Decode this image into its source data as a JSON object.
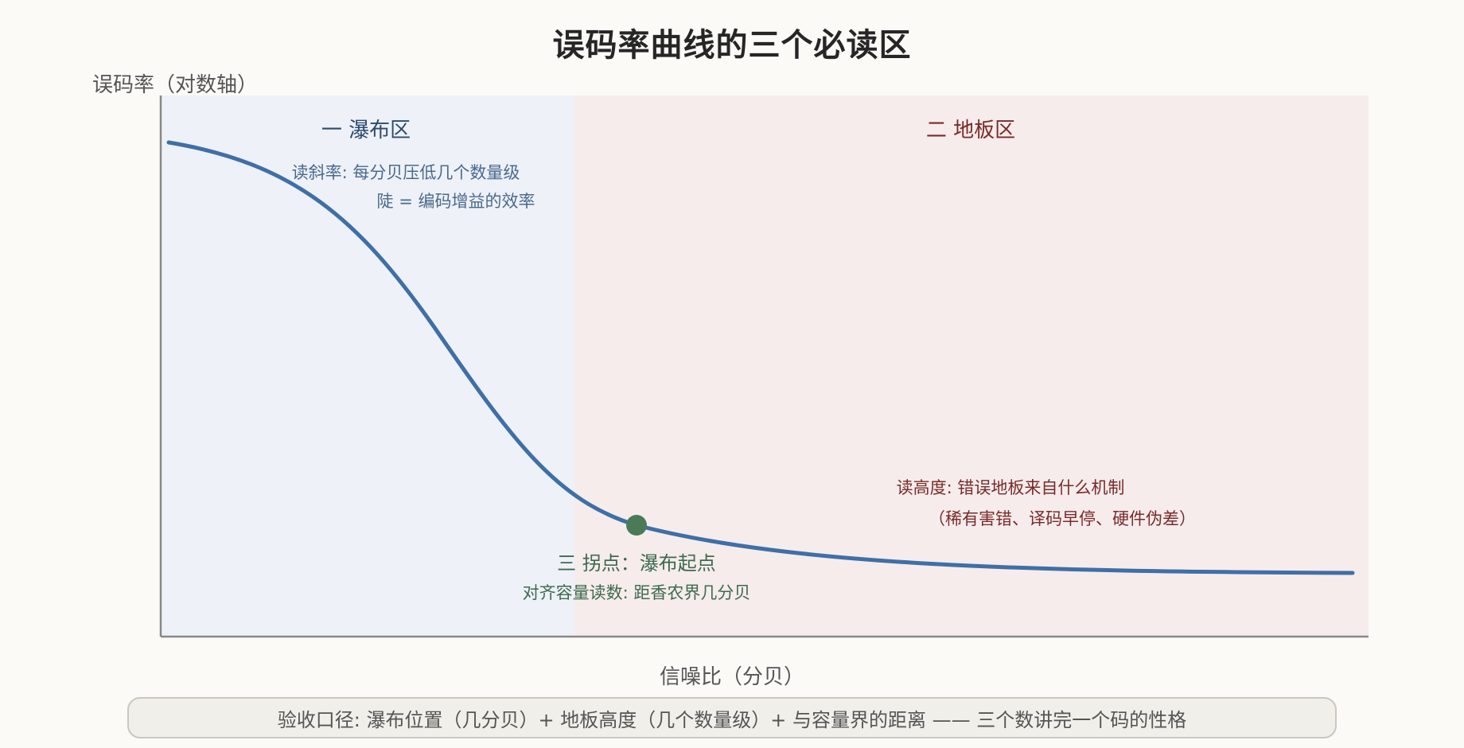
{
  "title": "误码率曲线的三个必读区",
  "ylabel": "误码率（对数轴）",
  "xlabel": "信噪比（分贝）",
  "colors": {
    "curve": "#3f6fa6",
    "waterfall_zone": "#eef1f8",
    "floor_zone": "#f6ecec",
    "waterfall_text": "#2d4a6d",
    "floor_text": "#7a2a2a",
    "knee_text": "#3e6a4e",
    "knee_dot": "#4a7a58",
    "axis": "#888888"
  },
  "zones": {
    "waterfall": {
      "label": "一 瀑布区",
      "note_line1": "读斜率: 每分贝压低几个数量级",
      "note_line2": "陡 = 编码增益的效率"
    },
    "floor": {
      "label": "二 地板区",
      "note_line1": "读高度: 错误地板来自什么机制",
      "note_line2": "（稀有害错、译码早停、硬件伪差）"
    },
    "knee": {
      "label": "三 拐点：瀑布起点",
      "note": "对齐容量读数: 距香农界几分贝"
    }
  },
  "footer": "验收口径: 瀑布位置（几分贝）+ 地板高度（几个数量级）+ 与容量界的距离 —— 三个数讲完一个码的性格"
}
